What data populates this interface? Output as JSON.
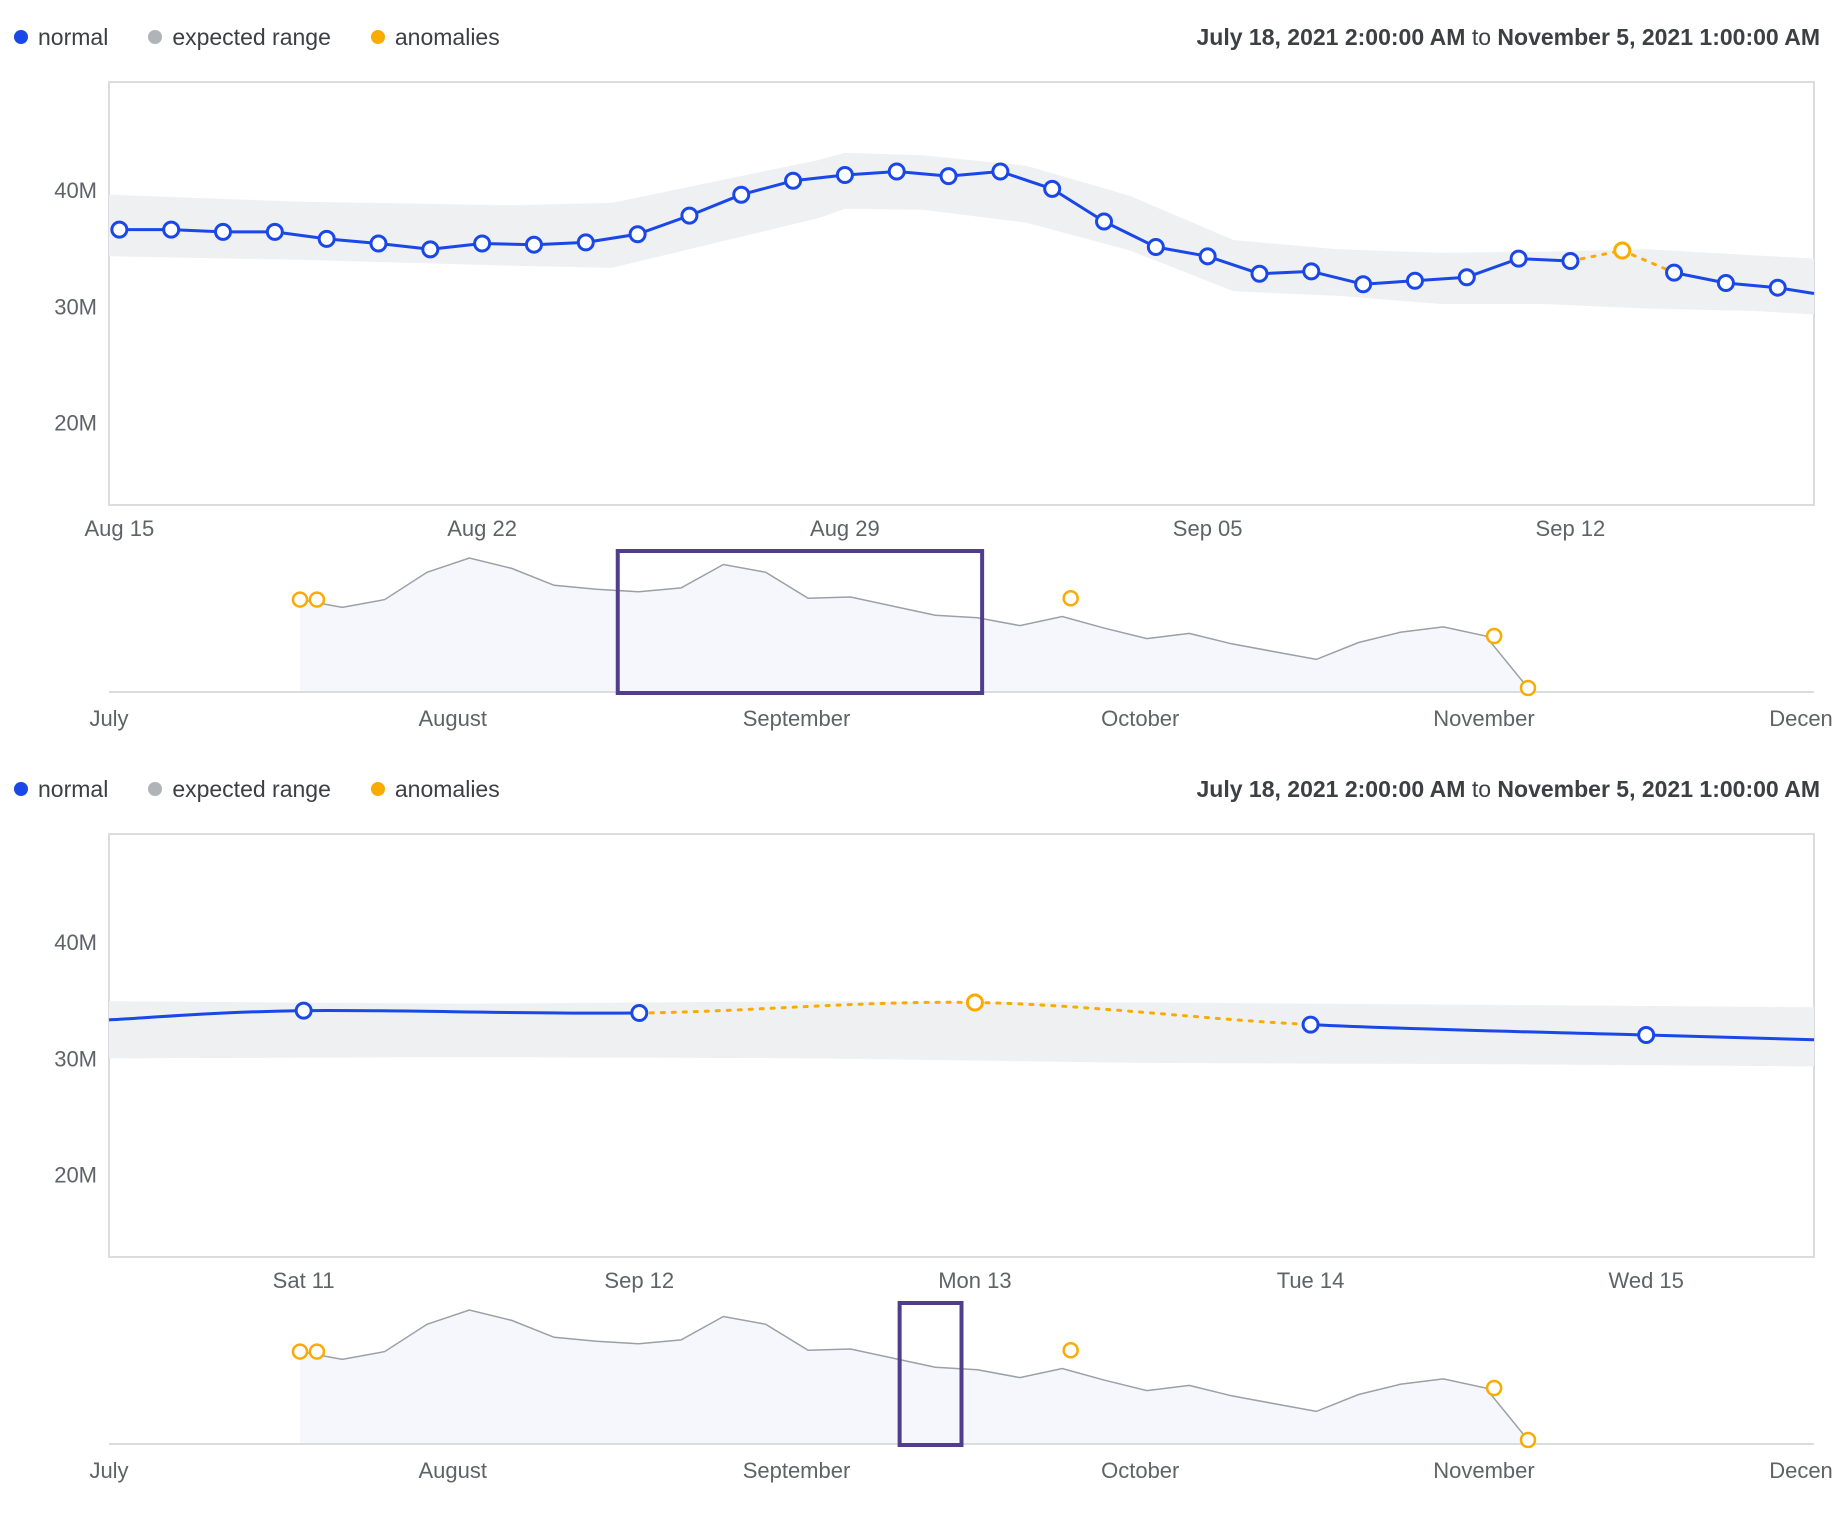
{
  "chart_data": [
    {
      "type": "line",
      "legend": {
        "normal": {
          "label": "normal",
          "color": "#1a47e8"
        },
        "expected": {
          "label": "expected range",
          "color": "#b0b3b8"
        },
        "anomaly": {
          "label": "anomalies",
          "color": "#f9ab00"
        }
      },
      "range_start": "July 18, 2021 2:00:00 AM",
      "range_sep": "to",
      "range_end": "November 5, 2021 1:00:00 AM",
      "y_ticks": [
        "40M",
        "30M",
        "20M"
      ],
      "y_tick_values": [
        40,
        30,
        20
      ],
      "ylim": [
        12.9,
        49.3
      ],
      "y_unit": "M",
      "x_tick_labels": [
        "Aug 15",
        "Aug 22",
        "Aug 29",
        "Sep 05",
        "Sep 12"
      ],
      "x_tick_positions": [
        0.5,
        7.5,
        14.5,
        21.5,
        28.5
      ],
      "xlim": [
        0.3,
        33.2
      ],
      "points_x": [
        0.5,
        1.5,
        2.5,
        3.5,
        4.5,
        5.5,
        6.5,
        7.5,
        8.5,
        9.5,
        10.5,
        11.5,
        12.5,
        13.5,
        14.5,
        15.5,
        16.5,
        17.5,
        18.5,
        19.5,
        20.5,
        21.5,
        22.5,
        23.5,
        24.5,
        25.5,
        26.5,
        27.5,
        28.5,
        29.5,
        30.5,
        31.5,
        32.5
      ],
      "values": [
        36.6,
        36.6,
        36.4,
        36.4,
        35.8,
        35.4,
        34.9,
        35.4,
        35.3,
        35.5,
        36.2,
        37.8,
        39.6,
        40.8,
        41.3,
        41.6,
        41.2,
        41.6,
        40.1,
        37.3,
        35.1,
        34.3,
        32.8,
        33.0,
        31.9,
        32.2,
        32.5,
        34.1,
        33.9,
        34.8,
        32.9,
        32.0,
        31.6
      ],
      "point_kind": [
        "normal",
        "normal",
        "normal",
        "normal",
        "normal",
        "normal",
        "normal",
        "normal",
        "normal",
        "normal",
        "normal",
        "normal",
        "normal",
        "normal",
        "normal",
        "normal",
        "normal",
        "normal",
        "normal",
        "normal",
        "normal",
        "normal",
        "normal",
        "normal",
        "normal",
        "normal",
        "normal",
        "normal",
        "normal",
        "anomaly",
        "normal",
        "normal",
        "normal"
      ],
      "tail": {
        "x": 33.2,
        "value": 31.1
      },
      "band_x": [
        0.3,
        4,
        8,
        10,
        14,
        14.5,
        16,
        18,
        20,
        22,
        24,
        26,
        28,
        30,
        32,
        33.2
      ],
      "band_upper": [
        39.6,
        39.0,
        38.7,
        38.9,
        42.6,
        43.2,
        43.0,
        42.1,
        39.5,
        35.7,
        34.9,
        34.6,
        34.7,
        34.9,
        34.4,
        34.1
      ],
      "band_lower": [
        34.3,
        34.0,
        33.5,
        33.3,
        37.6,
        38.4,
        38.3,
        37.2,
        34.8,
        31.3,
        30.9,
        30.2,
        30.2,
        29.8,
        29.6,
        29.3
      ],
      "overview": {
        "x_labels": [
          "July",
          "August",
          "September",
          "October",
          "November",
          "Decen"
        ],
        "x_label_positions": [
          0,
          1,
          2,
          3,
          4,
          5
        ],
        "values": [
          0.68,
          0.62,
          0.68,
          0.89,
          1.0,
          0.92,
          0.79,
          0.76,
          0.74,
          0.77,
          0.95,
          0.89,
          0.69,
          0.7,
          0.63,
          0.56,
          0.54,
          0.48,
          0.55,
          0.46,
          0.38,
          0.42,
          0.34,
          0.28,
          0.22,
          0.35,
          0.43,
          0.47,
          0.4,
          0.0
        ],
        "anomaly_values": [
          0.68,
          0.68,
          0.69,
          0.4,
          0.0
        ],
        "window_start": 1.48,
        "window_end": 2.54
      }
    },
    {
      "type": "line",
      "legend": {
        "normal": {
          "label": "normal",
          "color": "#1a47e8"
        },
        "expected": {
          "label": "expected range",
          "color": "#b0b3b8"
        },
        "anomaly": {
          "label": "anomalies",
          "color": "#f9ab00"
        }
      },
      "range_start": "July 18, 2021 2:00:00 AM",
      "range_sep": "to",
      "range_end": "November 5, 2021 1:00:00 AM",
      "y_ticks": [
        "40M",
        "30M",
        "20M"
      ],
      "y_tick_values": [
        40,
        30,
        20
      ],
      "ylim": [
        12.9,
        49.3
      ],
      "y_unit": "M",
      "x_tick_labels": [
        "Sat 11",
        "Sep 12",
        "Mon 13",
        "Tue 14",
        "Wed 15"
      ],
      "x_tick_positions": [
        0.5,
        1.5,
        2.5,
        3.5,
        4.5
      ],
      "xlim": [
        -0.08,
        5.0
      ],
      "points_x": [
        0.5,
        1.5,
        2.5,
        3.5,
        4.5
      ],
      "values": [
        34.1,
        33.9,
        34.8,
        32.9,
        32.0
      ],
      "point_kind": [
        "normal",
        "normal",
        "anomaly",
        "normal",
        "normal"
      ],
      "head": {
        "x": -0.08,
        "value": 33.3
      },
      "tail": {
        "x": 5.0,
        "value": 31.6
      },
      "band_x": [
        -0.08,
        1.0,
        2.0,
        3.0,
        4.0,
        5.0
      ],
      "band_upper": [
        34.9,
        34.7,
        34.9,
        34.8,
        34.6,
        34.4
      ],
      "band_lower": [
        30.0,
        30.1,
        30.0,
        29.6,
        29.5,
        29.3
      ],
      "overview": {
        "x_labels": [
          "July",
          "August",
          "September",
          "October",
          "November",
          "Decen"
        ],
        "x_label_positions": [
          0,
          1,
          2,
          3,
          4,
          5
        ],
        "values": [
          0.68,
          0.62,
          0.68,
          0.89,
          1.0,
          0.92,
          0.79,
          0.76,
          0.74,
          0.77,
          0.95,
          0.89,
          0.69,
          0.7,
          0.63,
          0.56,
          0.54,
          0.48,
          0.55,
          0.46,
          0.38,
          0.42,
          0.34,
          0.28,
          0.22,
          0.35,
          0.43,
          0.47,
          0.4,
          0.0
        ],
        "anomaly_values": [
          0.68,
          0.68,
          0.69,
          0.4,
          0.0
        ],
        "window_start": 2.3,
        "window_end": 2.48
      }
    }
  ]
}
